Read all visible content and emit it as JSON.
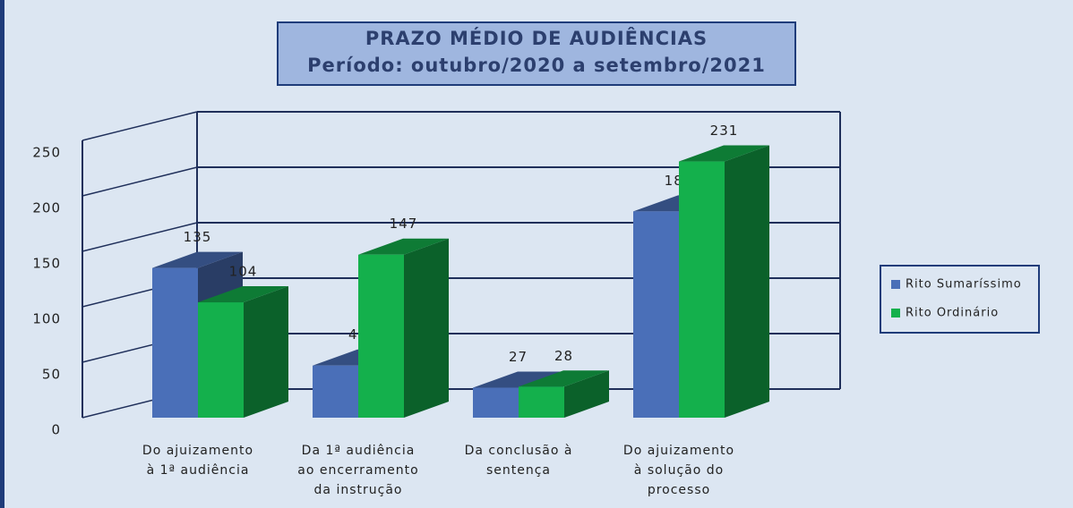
{
  "chart_data": {
    "type": "bar3d",
    "title": "PRAZO MÉDIO DE AUDIÊNCIAS",
    "subtitle": "Período: outubro/2020 a setembro/2021",
    "categories": [
      "Do ajuizamento\nà 1ª audiência",
      "Da 1ª audiência\nao encerramento\nda instrução",
      "Da conclusão à\nsentença",
      "Do ajuizamento\nà solução do\nprocesso"
    ],
    "series": [
      {
        "name": "Rito Sumaríssimo",
        "color": "#4a6fb8",
        "values": [
          135,
          47,
          27,
          186
        ]
      },
      {
        "name": "Rito Ordinário",
        "color": "#14b04c",
        "values": [
          104,
          147,
          28,
          231
        ]
      }
    ],
    "ylim": [
      0,
      250
    ],
    "yticks": [
      0,
      50,
      100,
      150,
      200,
      250
    ],
    "grid": true,
    "legend": "right"
  }
}
